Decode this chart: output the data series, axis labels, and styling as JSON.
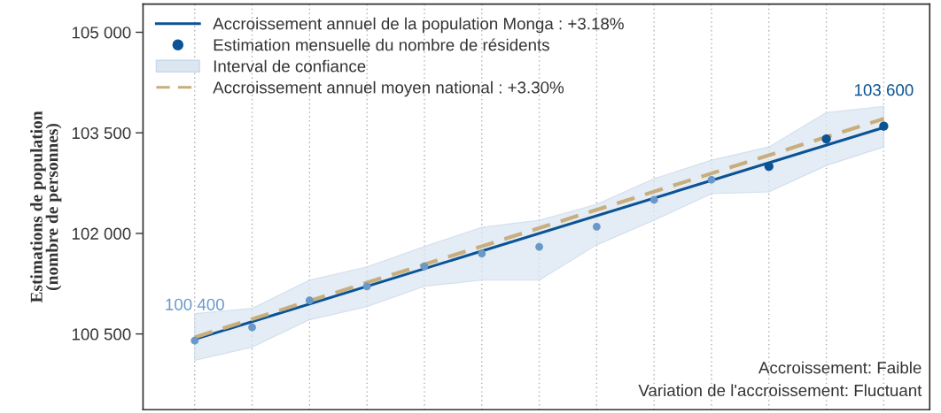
{
  "chart_data": {
    "type": "scatter",
    "ylabel": "Estimations de population\n(nombre de personnes)",
    "categories": [
      null,
      null,
      null,
      null,
      null,
      null,
      null,
      null,
      null,
      null,
      null,
      null,
      null
    ],
    "ylim": [
      99370,
      105420
    ],
    "yticks": [
      {
        "value": 100500,
        "label": "100 500"
      },
      {
        "value": 102000,
        "label": "102 000"
      },
      {
        "value": 103500,
        "label": "103 500"
      },
      {
        "value": 105000,
        "label": "105 000"
      }
    ],
    "tick_labels": "y",
    "grid": "x",
    "legend": "top left",
    "series": [
      {
        "type": "line",
        "name": "Accroissement annuel de la population Monga : +3.18%",
        "color": "#0b5394",
        "values": [
          100420,
          null,
          null,
          null,
          null,
          null,
          null,
          null,
          null,
          null,
          null,
          null,
          103580
        ],
        "line_style": "solid"
      },
      {
        "name": "Estimation mensuelle du nombre de résidents",
        "color": "#0b5394",
        "colors": [
          "#6899c8",
          "#6899c8",
          "#6899c8",
          "#6899c8",
          "#6899c8",
          "#6899c8",
          "#6899c8",
          "#6899c8",
          "#6899c8",
          "#6899c8",
          "#0b5394",
          "#0b5394",
          "#0b5394"
        ],
        "marker": "circle",
        "values": [
          100400,
          100600,
          101000,
          101210,
          101510,
          101700,
          101800,
          102100,
          102500,
          102800,
          103000,
          103410,
          103600
        ],
        "value_labels": [
          "100 400",
          null,
          null,
          null,
          null,
          null,
          null,
          null,
          null,
          null,
          null,
          null,
          "103 600"
        ]
      },
      {
        "type": "area",
        "name": "Interval de confiance",
        "color": "#dbe6f1",
        "values": [
          null,
          null,
          null,
          null,
          null,
          null,
          null,
          null,
          null,
          null,
          null,
          null,
          null
        ],
        "lower": [
          100105,
          100303,
          100711,
          100908,
          101211,
          101303,
          101303,
          101829,
          102197,
          102592,
          102618,
          103013,
          103290
        ],
        "upper": [
          100803,
          100882,
          101303,
          101500,
          101803,
          102092,
          102197,
          102434,
          102816,
          103092,
          103290,
          103803,
          103895
        ]
      },
      {
        "type": "line",
        "name": "Accroissement annuel moyen national : +3.30%",
        "color": "#c8ae7d",
        "values": [
          100450,
          null,
          null,
          null,
          null,
          null,
          null,
          null,
          null,
          null,
          null,
          null,
          103710
        ],
        "line_style": "dashed"
      }
    ],
    "annotations": [
      "Accroissement: Faible",
      "Variation de l'accroissement: Fluctuant"
    ]
  }
}
